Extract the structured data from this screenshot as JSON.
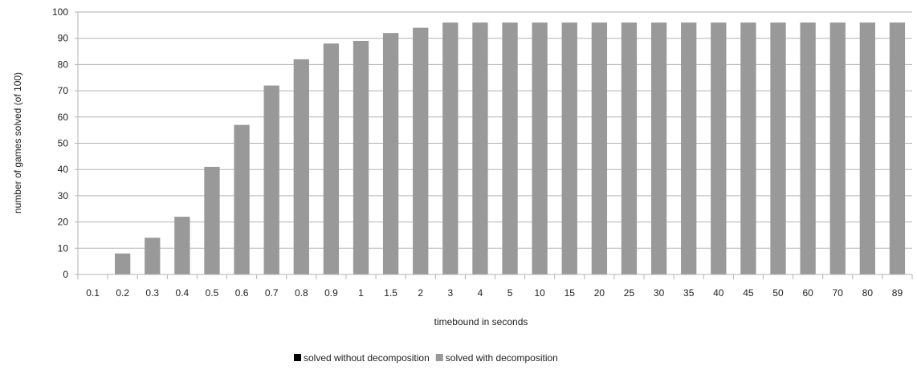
{
  "chart_data": {
    "type": "bar",
    "xlabel": "timebound in seconds",
    "ylabel": "number of games solved (of 100)",
    "ylim": [
      0,
      100
    ],
    "yticks": [
      0,
      10,
      20,
      30,
      40,
      50,
      60,
      70,
      80,
      90,
      100
    ],
    "grid": "horizontal",
    "legend_position": "bottom",
    "categories": [
      "0.1",
      "0.2",
      "0.3",
      "0.4",
      "0.5",
      "0.6",
      "0.7",
      "0.8",
      "0.9",
      "1",
      "1.5",
      "2",
      "3",
      "4",
      "5",
      "10",
      "15",
      "20",
      "25",
      "30",
      "35",
      "40",
      "45",
      "50",
      "60",
      "70",
      "80",
      "89"
    ],
    "series": [
      {
        "name": "solved without decomposition",
        "color": "#000000",
        "values": [
          0,
          0,
          0,
          0,
          0,
          0,
          0,
          0,
          0,
          0,
          0,
          0,
          0,
          0,
          0,
          0,
          0,
          0,
          0,
          0,
          0,
          0,
          0,
          0,
          0,
          0,
          0,
          0
        ]
      },
      {
        "name": "solved with decomposition",
        "color": "#999999",
        "values": [
          0,
          8,
          14,
          22,
          41,
          57,
          72,
          82,
          88,
          89,
          92,
          94,
          96,
          96,
          96,
          96,
          96,
          96,
          96,
          96,
          96,
          96,
          96,
          96,
          96,
          96,
          96,
          96
        ]
      }
    ]
  }
}
